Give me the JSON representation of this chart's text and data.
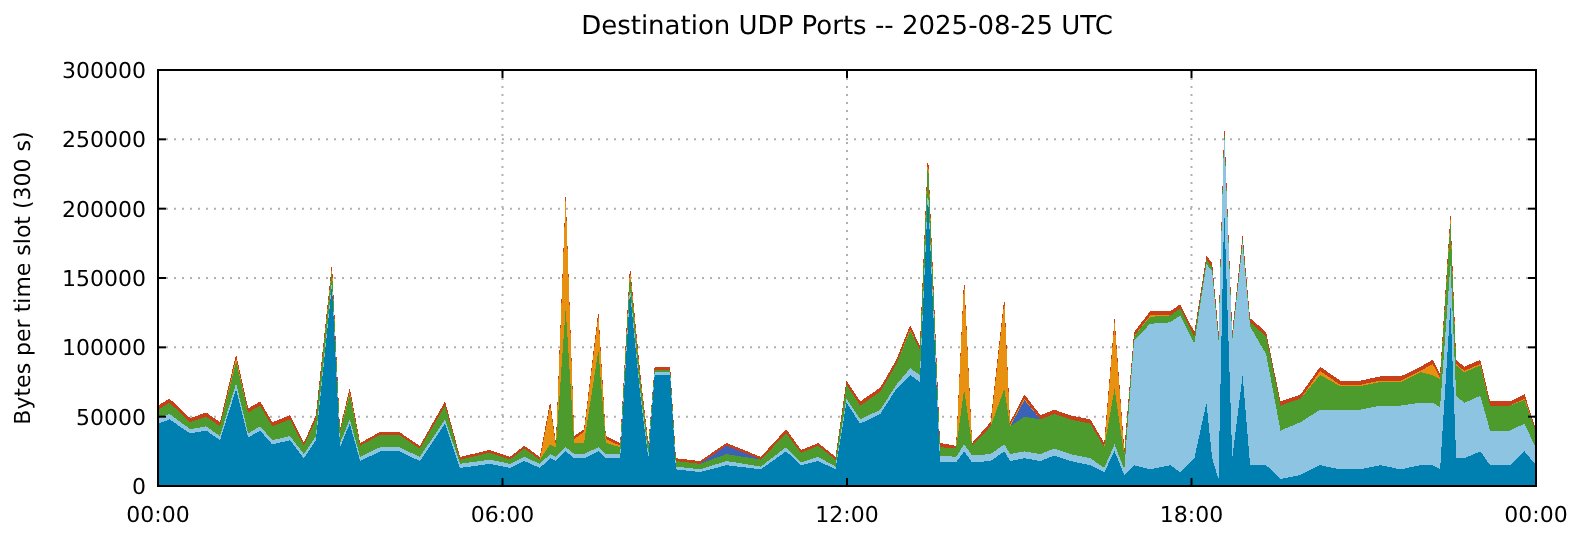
{
  "chart_data": {
    "type": "area",
    "stacked": true,
    "title": "Destination UDP Ports -- 2025-08-25 UTC",
    "ylabel": "Bytes per time slot (300 s)",
    "grid": true,
    "xlim": [
      0,
      24
    ],
    "xticks": [
      {
        "value": 0,
        "label": "00:00"
      },
      {
        "value": 6,
        "label": "06:00"
      },
      {
        "value": 12,
        "label": "12:00"
      },
      {
        "value": 18,
        "label": "18:00"
      },
      {
        "value": 24,
        "label": "00:00"
      }
    ],
    "ylim": [
      0,
      300000
    ],
    "yticks": [
      0,
      50000,
      100000,
      150000,
      200000,
      250000,
      300000
    ],
    "x": [
      0,
      0.2,
      0.56,
      0.84,
      1.08,
      1.36,
      1.57,
      1.78,
      1.99,
      2.3,
      2.54,
      2.75,
      3.03,
      3.17,
      3.34,
      3.52,
      3.87,
      4.2,
      4.56,
      5.0,
      5.26,
      5.78,
      6.13,
      6.38,
      6.65,
      6.83,
      6.93,
      7.1,
      7.25,
      7.42,
      7.67,
      7.8,
      8.05,
      8.22,
      8.4,
      8.54,
      8.65,
      8.92,
      9.02,
      9.44,
      9.9,
      10.5,
      10.94,
      11.2,
      11.5,
      11.8,
      11.99,
      12.23,
      12.58,
      12.86,
      13.1,
      13.27,
      13.41,
      13.62,
      13.9,
      14.04,
      14.18,
      14.5,
      14.74,
      14.84,
      15.09,
      15.37,
      15.61,
      15.89,
      16.24,
      16.48,
      16.66,
      16.83,
      17.0,
      17.28,
      17.63,
      17.8,
      18.05,
      18.26,
      18.36,
      18.47,
      18.57,
      18.71,
      18.89,
      19.02,
      19.3,
      19.55,
      19.9,
      20.24,
      20.59,
      20.94,
      21.29,
      21.64,
      21.99,
      22.2,
      22.33,
      22.51,
      22.61,
      22.75,
      23.03,
      23.2,
      23.55,
      23.8,
      24
    ],
    "series": [
      {
        "color": "#0080b0",
        "values": [
          45000,
          48000,
          38000,
          40000,
          33000,
          70000,
          35000,
          40000,
          30000,
          33000,
          20000,
          33000,
          145000,
          28000,
          45000,
          18000,
          25000,
          25000,
          18000,
          45000,
          13000,
          16000,
          13000,
          18000,
          13000,
          20000,
          18000,
          25000,
          20000,
          20000,
          25000,
          20000,
          20000,
          140000,
          65000,
          20000,
          80000,
          80000,
          12000,
          10000,
          15000,
          12000,
          25000,
          15000,
          18000,
          12000,
          60000,
          45000,
          52000,
          70000,
          80000,
          75000,
          210000,
          17000,
          17000,
          25000,
          17000,
          18000,
          25000,
          18000,
          20000,
          18000,
          22000,
          18000,
          15000,
          10000,
          25000,
          8000,
          15000,
          12000,
          15000,
          10000,
          20000,
          60000,
          20000,
          5000,
          200000,
          20000,
          80000,
          15000,
          15000,
          5000,
          8000,
          15000,
          12000,
          12000,
          15000,
          12000,
          15000,
          15000,
          12000,
          130000,
          20000,
          20000,
          25000,
          15000,
          15000,
          25000,
          15000
        ]
      },
      {
        "color": "#8cc4e2",
        "values": [
          4000,
          4000,
          3000,
          3000,
          3000,
          4000,
          3000,
          3000,
          3000,
          3000,
          3000,
          3000,
          3000,
          3000,
          3000,
          3000,
          3000,
          3000,
          3000,
          3000,
          3000,
          3000,
          3000,
          3000,
          3000,
          3000,
          3000,
          3000,
          3000,
          3000,
          3000,
          3000,
          3000,
          3000,
          3000,
          3000,
          2000,
          2000,
          2000,
          2000,
          3000,
          2000,
          3000,
          2000,
          3000,
          2000,
          3000,
          3000,
          3000,
          3000,
          5000,
          5000,
          5000,
          5000,
          4000,
          5000,
          5000,
          5000,
          5000,
          5000,
          5000,
          5000,
          5000,
          5000,
          5000,
          3000,
          5000,
          4000,
          90000,
          105000,
          103000,
          113000,
          83000,
          100000,
          135000,
          100000,
          55000,
          85000,
          95000,
          100000,
          80000,
          35000,
          38000,
          40000,
          43000,
          43000,
          43000,
          46000,
          45000,
          45000,
          45000,
          30000,
          45000,
          40000,
          40000,
          25000,
          25000,
          20000,
          12000
        ]
      },
      {
        "color": "#4d9a2d",
        "values": [
          6000,
          8000,
          5000,
          7000,
          7000,
          16000,
          15000,
          15000,
          10000,
          12000,
          6000,
          12000,
          8000,
          8000,
          18000,
          8000,
          9000,
          9000,
          6000,
          10000,
          3000,
          5000,
          3000,
          6000,
          3000,
          7000,
          7000,
          100000,
          8000,
          8000,
          70000,
          8000,
          5000,
          10000,
          8000,
          5000,
          2000,
          2000,
          4000,
          4000,
          5000,
          5000,
          10000,
          7000,
          8000,
          5000,
          10000,
          10000,
          13000,
          15000,
          27000,
          18000,
          20000,
          6000,
          6000,
          40000,
          7000,
          20000,
          40000,
          20000,
          25000,
          25000,
          25000,
          25000,
          25000,
          15000,
          40000,
          10000,
          3000,
          5000,
          5000,
          5000,
          5000,
          3000,
          3000,
          3000,
          3000,
          3000,
          3000,
          3000,
          13000,
          18000,
          17000,
          25000,
          17000,
          17000,
          17000,
          17000,
          22000,
          20000,
          20000,
          30000,
          22000,
          22000,
          22000,
          18000,
          18000,
          17000,
          12000
        ]
      },
      {
        "color": "#3a62b8",
        "values": [
          null,
          null,
          null,
          null,
          null,
          null,
          null,
          null,
          null,
          null,
          null,
          null,
          null,
          null,
          null,
          null,
          null,
          null,
          null,
          null,
          null,
          null,
          null,
          null,
          null,
          null,
          null,
          null,
          null,
          null,
          null,
          null,
          null,
          null,
          null,
          null,
          null,
          null,
          null,
          0,
          6000,
          0,
          null,
          null,
          null,
          null,
          null,
          null,
          null,
          null,
          null,
          null,
          null,
          null,
          null,
          null,
          null,
          null,
          null,
          0,
          12000,
          0,
          null,
          null,
          null,
          null,
          null,
          null,
          null,
          null,
          null,
          null,
          null,
          null,
          null,
          null,
          null,
          null,
          null,
          null,
          null,
          null,
          null,
          null,
          null,
          null,
          null,
          null,
          null,
          null,
          null,
          null,
          null,
          null,
          null,
          null,
          null,
          null,
          null
        ]
      },
      {
        "color": "#e8900f",
        "values": [
          0,
          0,
          0,
          0,
          0,
          2000,
          0,
          0,
          0,
          0,
          0,
          0,
          2000,
          0,
          2000,
          0,
          0,
          0,
          0,
          0,
          0,
          0,
          0,
          0,
          0,
          28000,
          1000,
          80000,
          3000,
          8000,
          25000,
          3000,
          1000,
          3000,
          2000,
          1000,
          0,
          0,
          0,
          0,
          0,
          0,
          0,
          0,
          0,
          0,
          0,
          0,
          0,
          0,
          1000,
          0,
          3000,
          0,
          0,
          78000,
          0,
          0,
          63000,
          1000,
          1000,
          0,
          0,
          0,
          0,
          0,
          48000,
          1000,
          0,
          1000,
          0,
          0,
          0,
          0,
          0,
          0,
          0,
          0,
          0,
          0,
          0,
          0,
          0,
          3000,
          1000,
          1000,
          1000,
          1000,
          1000,
          8000,
          1000,
          3000,
          1000,
          1000,
          1000,
          0,
          0,
          1000,
          0
        ]
      },
      {
        "color": "#c8401a",
        "values": [
          3000,
          3000,
          3000,
          3000,
          3000,
          3000,
          3000,
          3000,
          3000,
          3000,
          2000,
          3000,
          3000,
          2000,
          3000,
          2000,
          2000,
          2000,
          2000,
          3000,
          2000,
          2000,
          2000,
          2000,
          2000,
          3000,
          2000,
          3000,
          2000,
          2000,
          3000,
          2000,
          2000,
          3000,
          3000,
          2000,
          2000,
          2000,
          2000,
          2000,
          2000,
          2000,
          3000,
          2000,
          2000,
          2000,
          3000,
          3000,
          3000,
          3000,
          3000,
          3000,
          3000,
          3000,
          2000,
          3000,
          2000,
          3000,
          3000,
          2000,
          3000,
          3000,
          3000,
          3000,
          3000,
          3000,
          3000,
          3000,
          3000,
          3000,
          3000,
          3000,
          3000,
          3000,
          3000,
          3000,
          3000,
          3000,
          3000,
          3000,
          3000,
          3000,
          3000,
          3000,
          3000,
          3000,
          3000,
          3000,
          3000,
          3000,
          3000,
          3000,
          3000,
          3000,
          3000,
          3000,
          3000,
          3000,
          2000
        ]
      }
    ]
  }
}
